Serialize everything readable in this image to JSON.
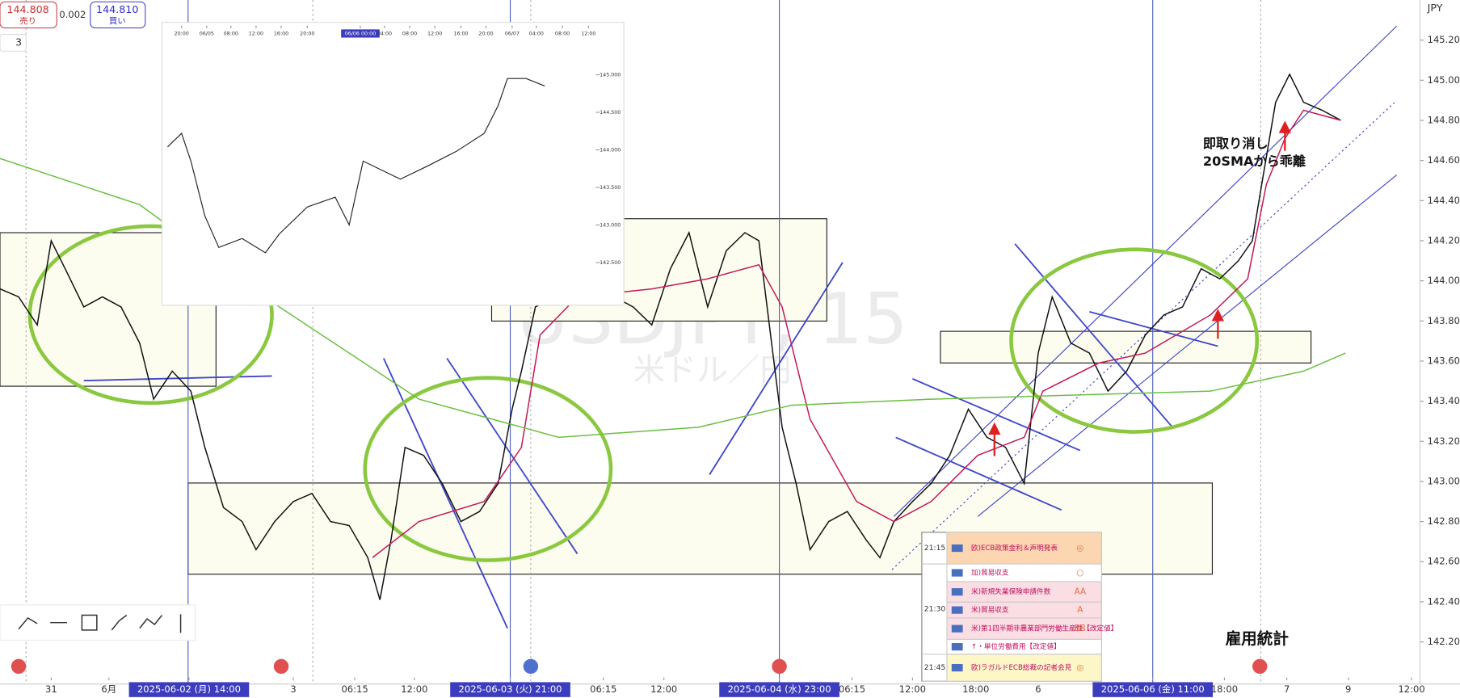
{
  "header": {
    "sell_price": "144.808",
    "sell_label": "売り",
    "spread": "0.002",
    "buy_price": "144.810",
    "buy_label": "買い",
    "interval": "3",
    "currency": "JPY"
  },
  "watermark": {
    "symbol": "USDJPY, 15",
    "name": "米ドル／円"
  },
  "events": [
    {
      "time": "21:15",
      "items": [
        {
          "text": "欧)ECB政策金利＆声明発表",
          "rank": "◎"
        }
      ]
    },
    {
      "time": "21:30",
      "items": [
        {
          "text": "加)貿易収支",
          "rank": "○"
        },
        {
          "text": "米)新規失業保険申請件数",
          "rank": "AA"
        },
        {
          "text": "米)貿易収支",
          "rank": "A"
        },
        {
          "text": "米)第1四半期非農業部門労働生産性【改定値】",
          "rank": "BB"
        },
        {
          "text": "↑・単位労働費用【改定値】"
        }
      ]
    },
    {
      "time": "21:45",
      "items": [
        {
          "text": "欧)ラガルドECB総裁の記者会見",
          "rank": "◎"
        }
      ]
    }
  ],
  "chart_data": [
    {
      "type": "line",
      "annotations": [
        "即取り消し",
        "20SMAから乖離",
        "雇用統計"
      ],
      "xlim": [
        0,
        152.5
      ],
      "ylim": [
        141.99,
        145.4
      ],
      "grid": false,
      "yticks": [
        {
          "value": 145.2,
          "label": "145.200"
        },
        {
          "value": 145.0,
          "label": "145.000"
        },
        {
          "value": 144.8,
          "label": "144.800"
        },
        {
          "value": 144.6,
          "label": "144.600"
        },
        {
          "value": 144.4,
          "label": "144.400"
        },
        {
          "value": 144.2,
          "label": "144.200"
        },
        {
          "value": 144.0,
          "label": "144.000"
        },
        {
          "value": 143.8,
          "label": "143.800"
        },
        {
          "value": 143.6,
          "label": "143.600"
        },
        {
          "value": 143.4,
          "label": "143.400"
        },
        {
          "value": 143.2,
          "label": "143.200"
        },
        {
          "value": 143.0,
          "label": "143.000"
        },
        {
          "value": 142.8,
          "label": "142.800"
        },
        {
          "value": 142.6,
          "label": "142.600"
        },
        {
          "value": 142.4,
          "label": "142.400"
        },
        {
          "value": 142.2,
          "label": "142.200"
        }
      ],
      "xticks": [
        {
          "value": 5.5,
          "label": "31"
        },
        {
          "value": 11.7,
          "label": "6月"
        },
        {
          "value": 20.3,
          "label": "2025-06-02 (月)   14:00",
          "highlight": true
        },
        {
          "value": 31.5,
          "label": "3"
        },
        {
          "value": 38.1,
          "label": "06:15"
        },
        {
          "value": 44.5,
          "label": "12:00"
        },
        {
          "value": 54.8,
          "label": "2025-06-03 (火)   21:00",
          "highlight": true
        },
        {
          "value": 64.8,
          "label": "06:15"
        },
        {
          "value": 71.3,
          "label": "12:00"
        },
        {
          "value": 83.7,
          "label": "2025-06-04 (水)   23:00",
          "highlight": true
        },
        {
          "value": 91.5,
          "label": "06:15"
        },
        {
          "value": 98.0,
          "label": "12:00"
        },
        {
          "value": 104.8,
          "label": "18:00"
        },
        {
          "value": 111.5,
          "label": "6"
        },
        {
          "value": 123.8,
          "label": "2025-06-06 (金)   11:00",
          "highlight": true
        },
        {
          "value": 131.5,
          "label": "18:00"
        },
        {
          "value": 138.2,
          "label": "7"
        },
        {
          "value": 144.8,
          "label": "9"
        },
        {
          "value": 151.6,
          "label": "12:00"
        }
      ],
      "series": [
        {
          "color": "#111111",
          "x": [
            0,
            2,
            4,
            5.5,
            7,
            9,
            11,
            13,
            15,
            16.5,
            18.5,
            20.5,
            22,
            24,
            26,
            27.5,
            29.5,
            31.5,
            33.5,
            35.5,
            37.5,
            39.5,
            40.8,
            42,
            43.5,
            45.5,
            47.5,
            49.5,
            51.5,
            53.5,
            55,
            56,
            57.5,
            59.5,
            62,
            64,
            66,
            68,
            70,
            72,
            74,
            76,
            78,
            80,
            81.5,
            83,
            84,
            85.5,
            87,
            89,
            91,
            93,
            94.5,
            96,
            98,
            100,
            102,
            104,
            106,
            108,
            110,
            111.5,
            113,
            115,
            117,
            119,
            121,
            123,
            125,
            127,
            129,
            131,
            133,
            134.5,
            135.5,
            137,
            138.5,
            140,
            142,
            144
          ],
          "values": [
            143.96,
            143.92,
            143.78,
            144.2,
            144.06,
            143.87,
            143.92,
            143.87,
            143.69,
            143.41,
            143.55,
            143.45,
            143.17,
            142.87,
            142.8,
            142.66,
            142.8,
            142.9,
            142.94,
            142.8,
            142.78,
            142.62,
            142.41,
            142.71,
            143.17,
            143.13,
            142.99,
            142.8,
            142.85,
            142.99,
            143.36,
            143.55,
            143.87,
            143.92,
            143.96,
            144.01,
            143.92,
            143.87,
            143.78,
            144.06,
            144.24,
            143.87,
            144.15,
            144.24,
            144.2,
            143.64,
            143.27,
            142.99,
            142.66,
            142.8,
            142.85,
            142.71,
            142.62,
            142.8,
            142.9,
            142.99,
            143.13,
            143.36,
            143.22,
            143.17,
            142.99,
            143.64,
            143.92,
            143.69,
            143.64,
            143.45,
            143.55,
            143.73,
            143.83,
            143.87,
            144.06,
            144.01,
            144.1,
            144.2,
            144.48,
            144.89,
            145.03,
            144.89,
            144.85,
            144.8
          ]
        },
        {
          "color": "#c2185b",
          "x": [
            40,
            45,
            52,
            56,
            58,
            62,
            70,
            76,
            81.5,
            84,
            87,
            92,
            96,
            100,
            105,
            110,
            112,
            118,
            123,
            130,
            134,
            136,
            138,
            140,
            144
          ],
          "values": [
            142.62,
            142.8,
            142.9,
            143.17,
            143.73,
            143.92,
            143.96,
            144.01,
            144.08,
            143.87,
            143.31,
            142.9,
            142.8,
            142.9,
            143.13,
            143.22,
            143.45,
            143.59,
            143.64,
            143.83,
            144.01,
            144.48,
            144.71,
            144.85,
            144.8
          ]
        },
        {
          "color": "#6abf40",
          "x": [
            0,
            15,
            30,
            45,
            60,
            75,
            85,
            100,
            115,
            130,
            140,
            144.5
          ],
          "values": [
            144.61,
            144.38,
            143.87,
            143.41,
            143.22,
            143.27,
            143.38,
            143.41,
            143.43,
            143.45,
            143.55,
            143.64
          ]
        }
      ]
    },
    {
      "type": "line",
      "xlim": [
        0,
        46.3
      ],
      "ylim": [
        142.03,
        145.5
      ],
      "yticks": [
        {
          "value": 145.0,
          "label": "145.000"
        },
        {
          "value": 144.5,
          "label": "144.500"
        },
        {
          "value": 144.0,
          "label": "144.000"
        },
        {
          "value": 143.5,
          "label": "143.500"
        },
        {
          "value": 143.0,
          "label": "143.000"
        },
        {
          "value": 142.5,
          "label": "142.500"
        }
      ],
      "xticks": [
        {
          "value": 1.8,
          "label": "20:00"
        },
        {
          "value": 4.5,
          "label": "06/05"
        },
        {
          "value": 7.1,
          "label": "08:00"
        },
        {
          "value": 9.8,
          "label": "12:00"
        },
        {
          "value": 12.5,
          "label": "16:00"
        },
        {
          "value": 15.3,
          "label": "20:00"
        },
        {
          "value": 21.0,
          "label": "06/06 00:00",
          "highlight": true
        },
        {
          "value": 23.6,
          "label": "04:00"
        },
        {
          "value": 26.3,
          "label": "08:00"
        },
        {
          "value": 29.0,
          "label": "12:00"
        },
        {
          "value": 31.8,
          "label": "16:00"
        },
        {
          "value": 34.5,
          "label": "20:00"
        },
        {
          "value": 37.3,
          "label": "06/07"
        },
        {
          "value": 39.9,
          "label": "04:00"
        },
        {
          "value": 42.7,
          "label": "08:00"
        },
        {
          "value": 45.5,
          "label": "12:00"
        }
      ],
      "series": [
        {
          "color": "#222222",
          "x": [
            0.3,
            1.8,
            2.8,
            4.3,
            5.8,
            8.3,
            10.8,
            12.3,
            15.3,
            18.3,
            19.8,
            21.3,
            23.3,
            25.3,
            28.3,
            31.3,
            34.3,
            35.8,
            36.8,
            38.8,
            40.8
          ],
          "values": [
            144.04,
            144.22,
            143.85,
            143.12,
            142.7,
            142.82,
            142.63,
            142.88,
            143.24,
            143.37,
            143.0,
            143.85,
            143.73,
            143.61,
            143.79,
            143.98,
            144.22,
            144.59,
            144.95,
            144.95,
            144.85
          ]
        }
      ]
    }
  ]
}
